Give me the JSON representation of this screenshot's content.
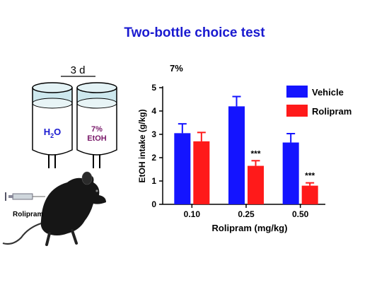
{
  "slide": {
    "title": "Two-bottle choice test"
  },
  "illustration": {
    "duration_label": "3 d",
    "bottle_left_label": "H",
    "bottle_left_subscript": "2",
    "bottle_left_suffix": "O",
    "bottle_right_line1": "7%",
    "bottle_right_line2": "EtOH",
    "injection_label": "Rolipram",
    "colors": {
      "water_text": "#1a1ad0",
      "etoh_text": "#7a1a6a",
      "bottle_fill": "#cde8ee"
    }
  },
  "chart_data": {
    "type": "bar",
    "title": "7%",
    "xlabel": "Rolipram (mg/kg)",
    "ylabel": "EtOH intake (g/kg)",
    "ylim": [
      0,
      5
    ],
    "yticks": [
      "0",
      "1",
      "2",
      "3",
      "4",
      "5"
    ],
    "categories": [
      "0.10",
      "0.25",
      "0.50"
    ],
    "series": [
      {
        "name": "Vehicle",
        "color": "#1414ff",
        "values": [
          3.05,
          4.2,
          2.65
        ],
        "errors": [
          0.4,
          0.42,
          0.38
        ]
      },
      {
        "name": "Rolipram",
        "color": "#ff1a1a",
        "values": [
          2.7,
          1.65,
          0.8
        ],
        "errors": [
          0.38,
          0.22,
          0.12
        ]
      }
    ],
    "annotations": [
      {
        "category": "0.25",
        "series": "Rolipram",
        "text": "***"
      },
      {
        "category": "0.50",
        "series": "Rolipram",
        "text": "***"
      }
    ],
    "legend_position": "top-right",
    "grid": false
  }
}
